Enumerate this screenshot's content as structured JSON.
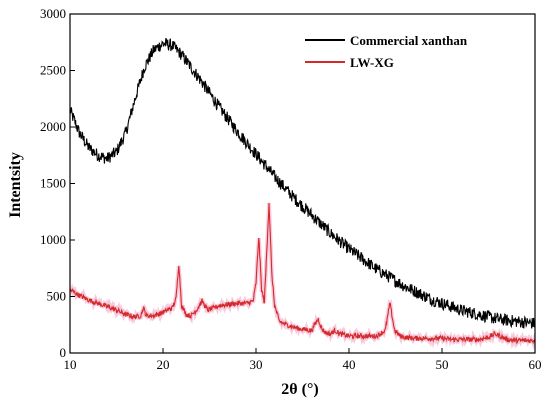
{
  "chart_data": {
    "type": "line",
    "xlabel": "2θ (°)",
    "ylabel": "Intentsity",
    "xlim": [
      10,
      60
    ],
    "ylim": [
      0,
      3000
    ],
    "x_ticks": [
      "10",
      "20",
      "30",
      "40",
      "50",
      "60"
    ],
    "y_ticks": [
      "0",
      "500",
      "1000",
      "1500",
      "2000",
      "2500",
      "3000"
    ],
    "legend_position": "top-right",
    "series": [
      {
        "name": "Commercial xanthan",
        "color": "#000000",
        "noise": 55,
        "x": [
          10,
          11,
          12,
          13,
          14,
          15,
          16,
          17,
          18,
          19,
          20,
          21,
          22,
          23,
          24,
          25,
          26,
          27,
          28,
          29,
          30,
          31,
          32,
          33,
          34,
          35,
          36,
          37,
          38,
          39,
          40,
          41,
          42,
          43,
          44,
          45,
          46,
          47,
          48,
          49,
          50,
          51,
          52,
          53,
          54,
          55,
          56,
          57,
          58,
          59,
          60
        ],
        "y": [
          2150,
          1950,
          1820,
          1750,
          1720,
          1780,
          1950,
          2250,
          2530,
          2680,
          2740,
          2720,
          2640,
          2530,
          2420,
          2300,
          2180,
          2070,
          1960,
          1860,
          1760,
          1660,
          1560,
          1470,
          1380,
          1300,
          1220,
          1140,
          1060,
          990,
          920,
          860,
          800,
          740,
          690,
          640,
          590,
          550,
          510,
          470,
          440,
          410,
          380,
          360,
          340,
          320,
          300,
          290,
          280,
          270,
          260
        ]
      },
      {
        "name": "LW-XG",
        "color": "#d42a2a",
        "noise": 22,
        "x": [
          10,
          11,
          12,
          13,
          14,
          15,
          16,
          17,
          17.6,
          17.9,
          18.2,
          19,
          20,
          21,
          21.4,
          21.7,
          22.0,
          22.5,
          23,
          23.6,
          24.2,
          24.8,
          25.5,
          26,
          27,
          28,
          29,
          29.7,
          30.0,
          30.3,
          30.6,
          30.9,
          31.1,
          31.4,
          31.7,
          32.0,
          32.5,
          33,
          34,
          35,
          36,
          36.3,
          36.7,
          37.1,
          37.5,
          38,
          38.5,
          39,
          40,
          41,
          42,
          43,
          43.9,
          44.4,
          44.9,
          45.5,
          46,
          47,
          48,
          49,
          50,
          51,
          52,
          53,
          54,
          55,
          55.7,
          56.5,
          57,
          58,
          59,
          60
        ],
        "y": [
          560,
          510,
          470,
          440,
          410,
          380,
          340,
          320,
          330,
          400,
          330,
          330,
          360,
          400,
          480,
          790,
          420,
          340,
          330,
          380,
          460,
          380,
          400,
          420,
          430,
          440,
          440,
          460,
          620,
          1030,
          560,
          450,
          800,
          1330,
          700,
          420,
          280,
          260,
          230,
          210,
          200,
          250,
          300,
          210,
          180,
          170,
          200,
          170,
          150,
          150,
          150,
          150,
          200,
          440,
          200,
          150,
          140,
          130,
          130,
          130,
          130,
          120,
          120,
          120,
          120,
          140,
          170,
          140,
          120,
          110,
          110,
          110
        ]
      }
    ]
  }
}
